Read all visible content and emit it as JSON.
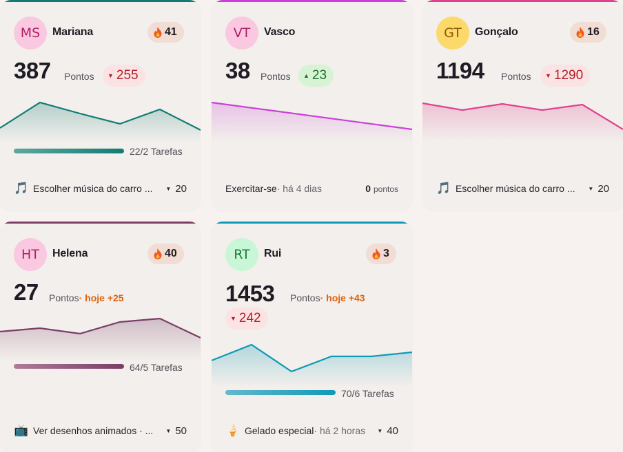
{
  "colors": {
    "teal": "#127b74",
    "purple": "#c93fd8",
    "pink": "#e0418c",
    "plum": "#7a3d66",
    "cyan": "#0e9ab6"
  },
  "cards": [
    {
      "initials": "MS",
      "name": "Mariana",
      "streak": "41",
      "points": "387",
      "points_label": "Pontos",
      "delta": "255",
      "delta_dir": "down",
      "progress_label": "22/2 Tarefas",
      "progress_fraction": 1.0,
      "task_icon": "music-note-icon",
      "task_icon_glyph": "🎵",
      "task_name": "Escolher música do carro ...",
      "task_points": "20"
    },
    {
      "initials": "VT",
      "name": "Vasco",
      "points": "38",
      "points_label": "Pontos",
      "delta": "23",
      "delta_dir": "up",
      "task_name": "Exercitar-se",
      "task_time": " · há 4 dias",
      "task_points": "0",
      "task_points_unit": "pontos"
    },
    {
      "initials": "GT",
      "name": "Gonçalo",
      "streak": "16",
      "points": "1194",
      "points_label": "Pontos",
      "delta": "1290",
      "delta_dir": "down",
      "task_icon": "music-note-icon",
      "task_icon_glyph": "🎵",
      "task_name": "Escolher música do carro ...",
      "task_points": "20"
    },
    {
      "initials": "HT",
      "name": "Helena",
      "streak": "40",
      "points": "27",
      "points_label": "Pontos",
      "today": "· hoje +25",
      "progress_label": "64/5 Tarefas",
      "progress_fraction": 1.0,
      "task_icon": "tv-icon",
      "task_icon_glyph": "📺",
      "task_name": "Ver desenhos animados · ...",
      "task_points": "50"
    },
    {
      "initials": "RT",
      "name": "Rui",
      "streak": "3",
      "points": "1453",
      "points_label": "Pontos",
      "today": "· hoje +43",
      "delta": "242",
      "delta_dir": "down",
      "progress_label": "70/6 Tarefas",
      "progress_fraction": 1.0,
      "task_icon": "ice-cream-icon",
      "task_icon_glyph": "🍦",
      "task_name": "Gelado especial",
      "task_time": " · há 2 horas",
      "task_points": "40"
    }
  ]
}
